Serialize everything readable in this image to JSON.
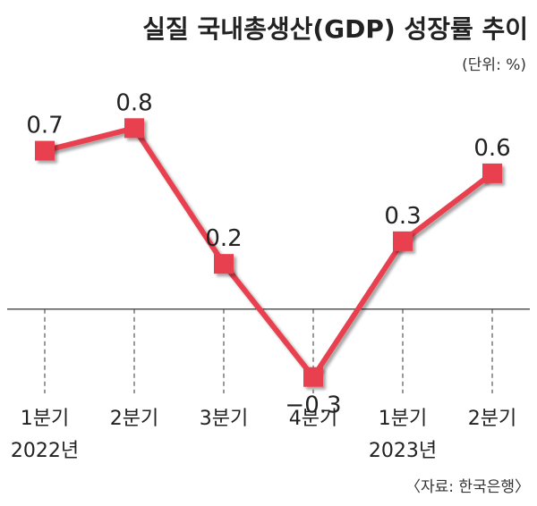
{
  "chart_data": {
    "type": "line",
    "title": "실질 국내총생산(GDP) 성장률 추이",
    "unit_note": "(단위: %)",
    "source": "〈자료: 한국은행〉",
    "categories": [
      "1분기",
      "2분기",
      "3분기",
      "4분기",
      "1분기",
      "2분기"
    ],
    "year_labels": [
      "2022년",
      "",
      "",
      "",
      "2023년",
      ""
    ],
    "series": [
      {
        "values": [
          0.7,
          0.8,
          0.2,
          -0.3,
          0.3,
          0.6
        ]
      }
    ],
    "data_labels": [
      "0.7",
      "0.8",
      "0.2",
      "−0.3",
      "0.3",
      "0.6"
    ],
    "ylim": [
      -0.55,
      1.05
    ],
    "baseline": 0,
    "grid": false,
    "colors": {
      "line": "#e8404f",
      "marker": "#e8404f",
      "axis": "#555555"
    }
  }
}
